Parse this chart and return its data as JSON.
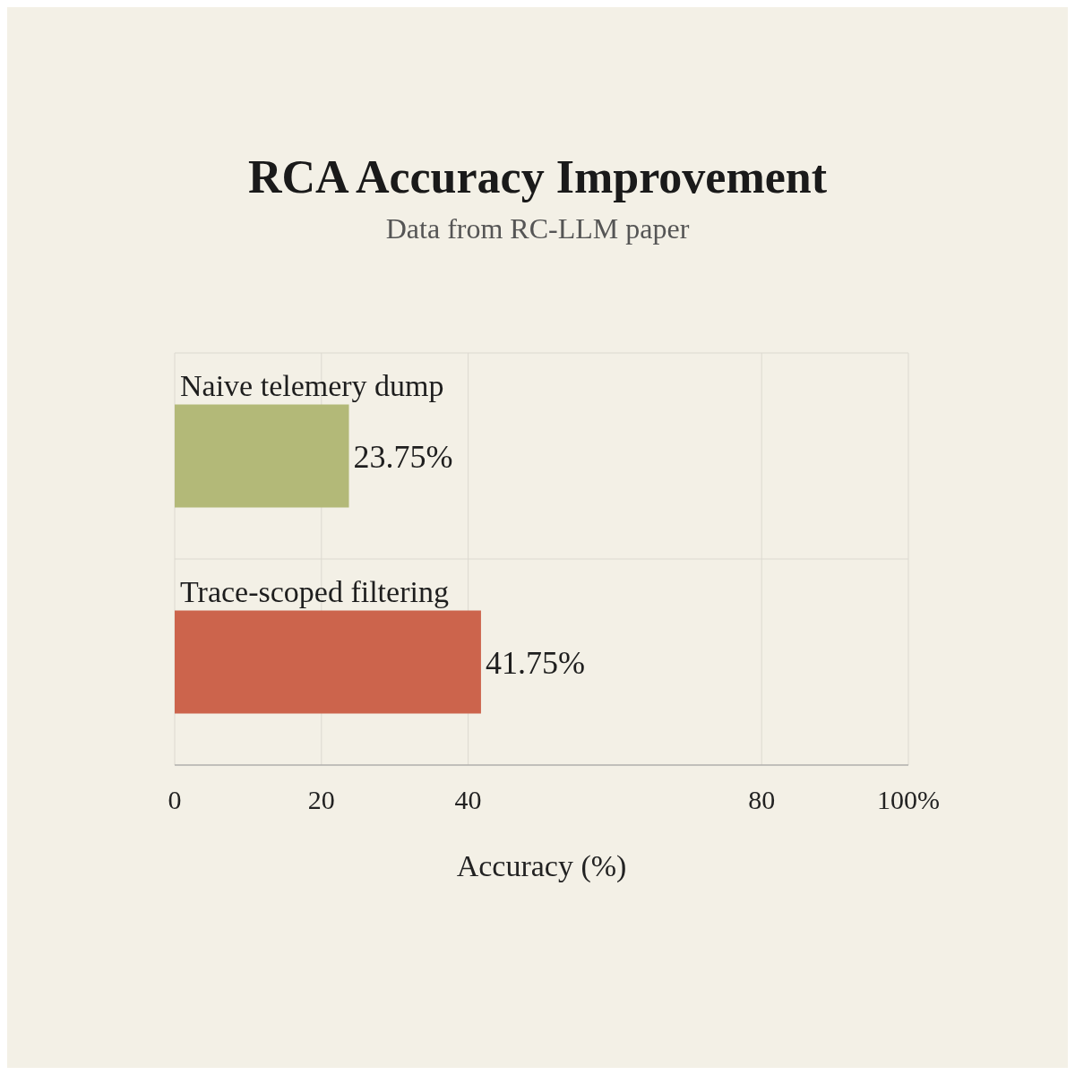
{
  "chart_data": {
    "type": "bar",
    "orientation": "horizontal",
    "title": "RCA Accuracy Improvement",
    "subtitle": "Data from RC-LLM paper",
    "xlabel": "Accuracy (%)",
    "categories": [
      "Naive telemery dump",
      "Trace-scoped filtering"
    ],
    "values": [
      23.75,
      41.75
    ],
    "colors": [
      "#b3b978",
      "#cc644c"
    ],
    "value_labels": [
      "23.75%",
      "41.75%"
    ],
    "xlim": [
      0,
      100
    ],
    "xticks": [
      0,
      20,
      40,
      80,
      {
        "value": 100,
        "label": "100%"
      }
    ],
    "grid": true
  }
}
